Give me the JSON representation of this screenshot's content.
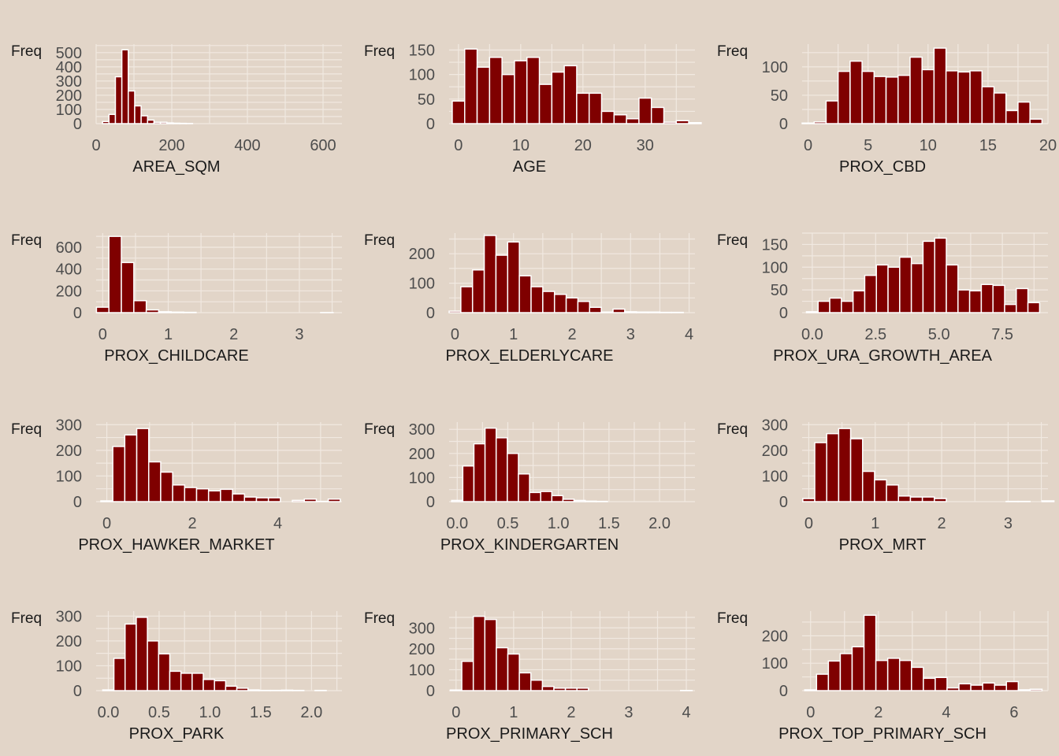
{
  "chart_data": [
    {
      "type": "bar",
      "ylabel": "Freq",
      "xlabel": "AREA_SQM",
      "xlim": [
        0,
        650
      ],
      "ylim": [
        0,
        560
      ],
      "binwidth": 17,
      "bin_start": 17,
      "values": [
        15,
        65,
        330,
        520,
        230,
        125,
        55,
        25,
        10,
        10,
        5,
        3,
        2,
        1,
        0,
        0,
        0,
        0,
        0,
        0,
        0,
        0,
        0,
        0,
        0,
        0,
        0,
        0,
        0,
        0,
        0,
        0,
        0,
        0,
        0,
        0,
        0
      ],
      "xticks": [
        0,
        200,
        400,
        600
      ],
      "xtick_labels": [
        "0",
        "200",
        "400",
        "600"
      ],
      "yticks": [
        0,
        100,
        200,
        300,
        400,
        500
      ],
      "ytick_labels": [
        "0",
        "100",
        "200",
        "300",
        "400",
        "500"
      ]
    },
    {
      "type": "bar",
      "ylabel": "Freq",
      "xlabel": "AGE",
      "xlim": [
        -1.5,
        38
      ],
      "ylim": [
        0,
        162
      ],
      "binwidth": 2,
      "bin_start": -1,
      "values": [
        46,
        152,
        115,
        135,
        100,
        128,
        135,
        80,
        105,
        118,
        62,
        62,
        25,
        18,
        10,
        52,
        33,
        3,
        6,
        2
      ],
      "xticks": [
        0,
        10,
        20,
        30
      ],
      "xtick_labels": [
        "0",
        "10",
        "20",
        "30"
      ],
      "yticks": [
        0,
        50,
        100,
        150
      ],
      "ytick_labels": [
        "0",
        "50",
        "100",
        "150"
      ]
    },
    {
      "type": "bar",
      "ylabel": "Freq",
      "xlabel": "PROX_CBD",
      "xlim": [
        -0.5,
        20
      ],
      "ylim": [
        0,
        140
      ],
      "binwidth": 1,
      "bin_start": -0.5,
      "values": [
        1,
        3,
        40,
        92,
        110,
        92,
        83,
        82,
        85,
        117,
        95,
        133,
        93,
        91,
        93,
        65,
        54,
        23,
        38,
        8
      ],
      "xticks": [
        0,
        5,
        10,
        15,
        20
      ],
      "xtick_labels": [
        "0",
        "5",
        "10",
        "15",
        "20"
      ],
      "yticks": [
        0,
        50,
        100
      ],
      "ytick_labels": [
        "0",
        "50",
        "100"
      ]
    },
    {
      "type": "bar",
      "ylabel": "Freq",
      "xlabel": "PROX_CHILDCARE",
      "xlim": [
        -0.1,
        3.65
      ],
      "ylim": [
        0,
        730
      ],
      "binwidth": 0.19,
      "bin_start": -0.095,
      "values": [
        50,
        700,
        460,
        110,
        25,
        8,
        5,
        3,
        0,
        0,
        0,
        0,
        0,
        0,
        0,
        0,
        0,
        0,
        1
      ],
      "xticks": [
        0,
        1,
        2,
        3
      ],
      "xtick_labels": [
        "0",
        "1",
        "2",
        "3"
      ],
      "yticks": [
        0,
        200,
        400,
        600
      ],
      "ytick_labels": [
        "0",
        "200",
        "400",
        "600"
      ]
    },
    {
      "type": "bar",
      "ylabel": "Freq",
      "xlabel": "PROX_ELDERLYCARE",
      "xlim": [
        -0.1,
        4.1
      ],
      "ylim": [
        0,
        270
      ],
      "binwidth": 0.2,
      "bin_start": -0.1,
      "values": [
        5,
        88,
        145,
        262,
        195,
        240,
        125,
        88,
        72,
        62,
        50,
        38,
        18,
        2,
        12,
        3,
        2,
        2,
        1,
        1
      ],
      "xticks": [
        0,
        1,
        2,
        3,
        4
      ],
      "xtick_labels": [
        "0",
        "1",
        "2",
        "3",
        "4"
      ],
      "yticks": [
        0,
        100,
        200
      ],
      "ytick_labels": [
        "0",
        "100",
        "200"
      ]
    },
    {
      "type": "bar",
      "ylabel": "Freq",
      "xlabel": "PROX_URA_GROWTH_AREA",
      "xlim": [
        -0.4,
        9.3
      ],
      "ylim": [
        0,
        175
      ],
      "binwidth": 0.46,
      "bin_start": -0.23,
      "values": [
        2,
        25,
        32,
        25,
        48,
        82,
        105,
        100,
        122,
        108,
        157,
        164,
        105,
        50,
        48,
        62,
        60,
        18,
        53,
        22
      ],
      "xticks": [
        0,
        2.5,
        5,
        7.5
      ],
      "xtick_labels": [
        "0.0",
        "2.5",
        "5.0",
        "7.5"
      ],
      "yticks": [
        0,
        50,
        100,
        150
      ],
      "ytick_labels": [
        "0",
        "50",
        "100",
        "150"
      ]
    },
    {
      "type": "bar",
      "ylabel": "Freq",
      "xlabel": "PROX_HAWKER_MARKET",
      "xlim": [
        -0.25,
        5.5
      ],
      "ylim": [
        0,
        310
      ],
      "binwidth": 0.28,
      "bin_start": -0.14,
      "values": [
        3,
        215,
        260,
        285,
        155,
        115,
        65,
        55,
        50,
        42,
        48,
        30,
        18,
        15,
        15,
        0,
        5,
        10,
        1,
        10
      ],
      "xticks": [
        0,
        2,
        4
      ],
      "xtick_labels": [
        "0",
        "2",
        "4"
      ],
      "yticks": [
        0,
        100,
        200,
        300
      ],
      "ytick_labels": [
        "0",
        "100",
        "200",
        "300"
      ]
    },
    {
      "type": "bar",
      "ylabel": "Freq",
      "xlabel": "PROX_KINDERGARTEN",
      "xlim": [
        -0.08,
        2.35
      ],
      "ylim": [
        0,
        330
      ],
      "binwidth": 0.11,
      "bin_start": -0.055,
      "values": [
        5,
        148,
        240,
        305,
        265,
        200,
        115,
        38,
        42,
        25,
        10,
        5,
        2,
        1,
        0,
        0,
        0,
        0,
        0,
        0,
        0,
        0
      ],
      "xticks": [
        0,
        0.5,
        1,
        1.5,
        2
      ],
      "xtick_labels": [
        "0.0",
        "0.5",
        "1.0",
        "1.5",
        "2.0"
      ],
      "yticks": [
        0,
        100,
        200,
        300
      ],
      "ytick_labels": [
        "0",
        "100",
        "200",
        "300"
      ]
    },
    {
      "type": "bar",
      "ylabel": "Freq",
      "xlabel": "PROX_MRT",
      "xlim": [
        -0.1,
        3.6
      ],
      "ylim": [
        0,
        310
      ],
      "binwidth": 0.18,
      "bin_start": -0.09,
      "values": [
        12,
        230,
        265,
        285,
        245,
        118,
        85,
        65,
        22,
        18,
        18,
        12,
        0,
        0,
        0,
        0,
        0,
        1,
        1,
        0,
        3
      ],
      "xticks": [
        0,
        1,
        2,
        3
      ],
      "xtick_labels": [
        "0",
        "1",
        "2",
        "3"
      ],
      "yticks": [
        0,
        100,
        200,
        300
      ],
      "ytick_labels": [
        "0",
        "100",
        "200",
        "300"
      ]
    },
    {
      "type": "bar",
      "ylabel": "Freq",
      "xlabel": "PROX_PARK",
      "xlim": [
        -0.12,
        2.3
      ],
      "ylim": [
        0,
        320
      ],
      "binwidth": 0.11,
      "bin_start": -0.055,
      "values": [
        3,
        130,
        268,
        295,
        200,
        148,
        78,
        70,
        70,
        45,
        40,
        18,
        10,
        3,
        1,
        1,
        2,
        1,
        0,
        1
      ],
      "xticks": [
        0,
        0.5,
        1,
        1.5,
        2
      ],
      "xtick_labels": [
        "0.0",
        "0.5",
        "1.0",
        "1.5",
        "2.0"
      ],
      "yticks": [
        0,
        100,
        200,
        300
      ],
      "ytick_labels": [
        "0",
        "100",
        "200",
        "300"
      ]
    },
    {
      "type": "bar",
      "ylabel": "Freq",
      "xlabel": "PROX_PRIMARY_SCH",
      "xlim": [
        -0.12,
        4.15
      ],
      "ylim": [
        0,
        380
      ],
      "binwidth": 0.2,
      "bin_start": -0.1,
      "values": [
        3,
        140,
        355,
        340,
        205,
        175,
        85,
        50,
        20,
        12,
        12,
        12,
        0,
        0,
        0,
        0,
        0,
        0,
        0,
        0,
        1
      ],
      "xticks": [
        0,
        1,
        2,
        3,
        4
      ],
      "xtick_labels": [
        "0",
        "1",
        "2",
        "3",
        "4"
      ],
      "yticks": [
        0,
        100,
        200,
        300
      ],
      "ytick_labels": [
        "0",
        "100",
        "200",
        "300"
      ]
    },
    {
      "type": "bar",
      "ylabel": "Freq",
      "xlabel": "PROX_TOP_PRIMARY_SCH",
      "xlim": [
        -0.25,
        7
      ],
      "ylim": [
        0,
        290
      ],
      "binwidth": 0.35,
      "bin_start": -0.175,
      "values": [
        3,
        60,
        108,
        135,
        160,
        275,
        110,
        118,
        110,
        85,
        45,
        48,
        10,
        25,
        20,
        28,
        20,
        33,
        3,
        5
      ],
      "xticks": [
        0,
        2,
        4,
        6
      ],
      "xtick_labels": [
        "0",
        "2",
        "4",
        "6"
      ],
      "yticks": [
        0,
        100,
        200
      ],
      "ytick_labels": [
        "0",
        "100",
        "200"
      ]
    }
  ],
  "colors": {
    "background": "#e2d5c8",
    "bar_fill": "#7f0000",
    "bar_stroke": "#ffffff",
    "grid": "#f1e9e1",
    "tick_text": "#4d4d4d",
    "label_text": "#1a1a1a"
  }
}
